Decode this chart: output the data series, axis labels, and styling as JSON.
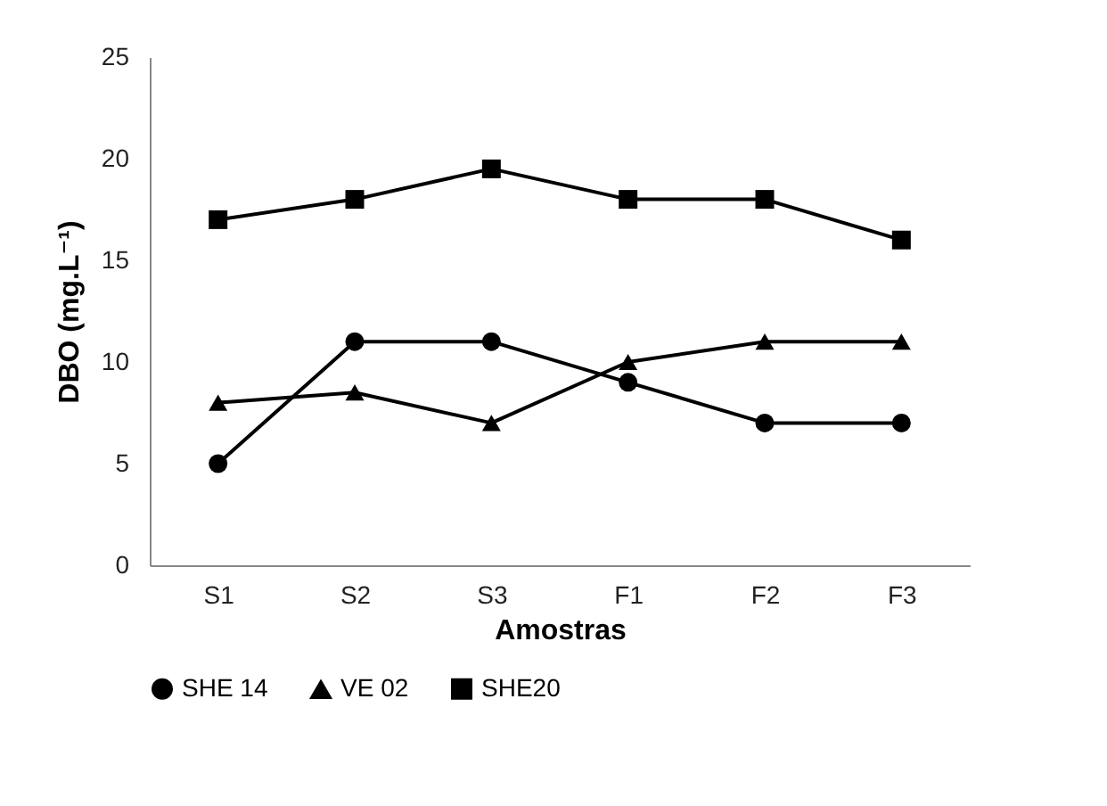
{
  "chart_data": {
    "type": "line",
    "xlabel": "Amostras",
    "ylabel": "DBO (mg.L⁻¹)",
    "categories": [
      "S1",
      "S2",
      "S3",
      "F1",
      "F2",
      "F3"
    ],
    "series": [
      {
        "name": "SHE 14",
        "color": "#000000",
        "marker": "circle",
        "values": [
          5,
          11,
          11,
          9,
          7,
          7
        ]
      },
      {
        "name": "VE 02",
        "color": "#000000",
        "marker": "triangle",
        "values": [
          8,
          8.5,
          7,
          10,
          11,
          11
        ]
      },
      {
        "name": "SHE20",
        "color": "#000000",
        "marker": "square",
        "values": [
          17,
          18,
          19.5,
          18,
          18,
          16
        ]
      }
    ],
    "ylim": [
      0,
      25
    ],
    "yticks": [
      0,
      5,
      10,
      15,
      20,
      25
    ],
    "grid": false,
    "legend": "bottom",
    "line_style": "solid"
  }
}
